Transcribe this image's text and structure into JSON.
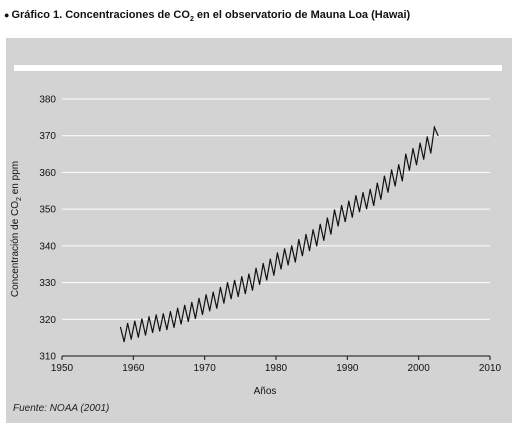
{
  "title": {
    "bullet": "●",
    "prefix": "Gráfico 1. Concentraciones de CO",
    "subscript": "2",
    "suffix": " en el observatorio de Mauna Loa (Hawai)"
  },
  "source": "Fuente: NOAA (2001)",
  "colors": {
    "panel": "#d3d3d3",
    "grid": "#ffffff",
    "line": "#111111",
    "text": "#111111"
  },
  "chart_data": {
    "type": "line",
    "title": "Gráfico 1. Concentraciones de CO2 en el observatorio de Mauna Loa (Hawai)",
    "xlabel": "Años",
    "ylabel": {
      "prefix": "Concentración de CO",
      "subscript": "2",
      "suffix": " en ppm"
    },
    "xlim": [
      1950,
      2010
    ],
    "ylim": [
      310,
      380
    ],
    "xticks": [
      1950,
      1960,
      1970,
      1980,
      1990,
      2000,
      2010
    ],
    "yticks": [
      310,
      320,
      330,
      340,
      350,
      360,
      370,
      380
    ],
    "grid": true,
    "series": [
      {
        "x": [
          1958.2,
          1958.7,
          1959.2,
          1959.7,
          1960.2,
          1960.7,
          1961.2,
          1961.7,
          1962.2,
          1962.7,
          1963.2,
          1963.7,
          1964.2,
          1964.7,
          1965.2,
          1965.7,
          1966.2,
          1966.7,
          1967.2,
          1967.7,
          1968.2,
          1968.7,
          1969.2,
          1969.7,
          1970.2,
          1970.7,
          1971.2,
          1971.7,
          1972.2,
          1972.7,
          1973.2,
          1973.7,
          1974.2,
          1974.7,
          1975.2,
          1975.7,
          1976.2,
          1976.7,
          1977.2,
          1977.7,
          1978.2,
          1978.7,
          1979.2,
          1979.7,
          1980.2,
          1980.7,
          1981.2,
          1981.7,
          1982.2,
          1982.7,
          1983.2,
          1983.7,
          1984.2,
          1984.7,
          1985.2,
          1985.7,
          1986.2,
          1986.7,
          1987.2,
          1987.7,
          1988.2,
          1988.7,
          1989.2,
          1989.7,
          1990.2,
          1990.7,
          1991.2,
          1991.7,
          1992.2,
          1992.7,
          1993.2,
          1993.7,
          1994.2,
          1994.7,
          1995.2,
          1995.7,
          1996.2,
          1996.7,
          1997.2,
          1997.7,
          1998.2,
          1998.7,
          1999.2,
          1999.7,
          2000.2,
          2000.7,
          2001.2,
          2001.7,
          2002.2,
          2002.7
        ],
        "y": [
          317.8,
          313.9,
          318.9,
          314.6,
          319.5,
          315.1,
          320.1,
          315.7,
          320.7,
          316.4,
          321.2,
          316.8,
          321.5,
          317.2,
          322.1,
          317.8,
          323.0,
          318.7,
          323.8,
          319.4,
          324.6,
          320.2,
          325.7,
          321.3,
          326.7,
          322.3,
          327.4,
          323.0,
          328.7,
          324.4,
          330.0,
          325.6,
          330.6,
          326.2,
          331.6,
          327.0,
          332.3,
          327.9,
          333.9,
          329.5,
          335.2,
          330.7,
          336.4,
          332.0,
          338.1,
          333.7,
          339.2,
          334.8,
          340.0,
          335.6,
          341.7,
          337.3,
          343.1,
          338.7,
          344.4,
          340.0,
          345.9,
          341.5,
          347.6,
          343.2,
          349.8,
          345.4,
          351.0,
          346.6,
          352.2,
          347.8,
          353.7,
          349.3,
          354.5,
          350.1,
          355.4,
          351.0,
          357.1,
          352.7,
          359.0,
          354.6,
          360.7,
          356.3,
          362.1,
          357.7,
          365.0,
          360.6,
          366.5,
          362.1,
          368.0,
          363.6,
          369.7,
          365.3,
          372.3,
          370.1
        ]
      }
    ]
  }
}
